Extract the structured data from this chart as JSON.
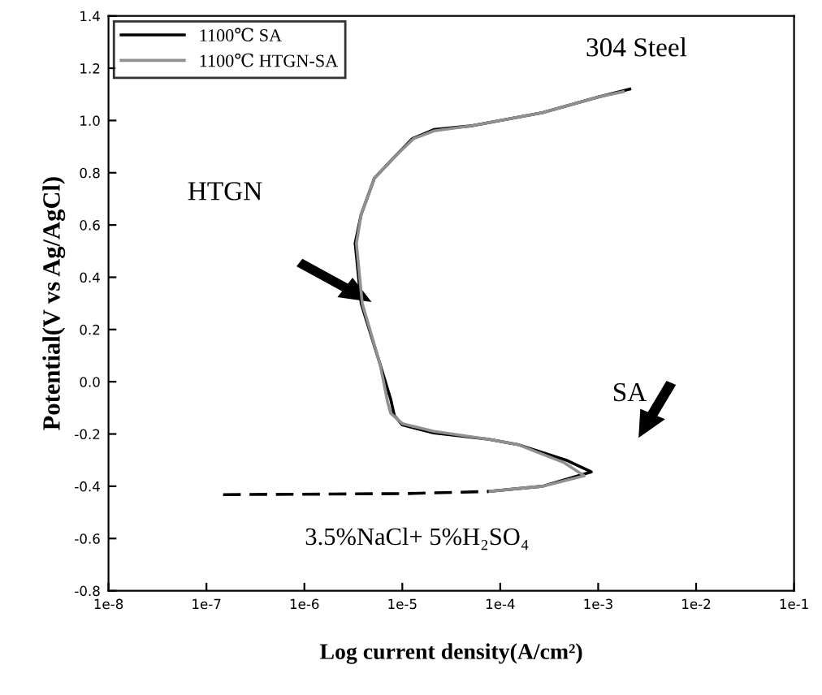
{
  "chart_data": {
    "type": "line",
    "xlabel": "Log current density(A/cm²)",
    "ylabel": "Potential(V vs Ag/AgCl)",
    "log": "x",
    "xlim": [
      1e-08,
      0.1
    ],
    "ylim": [
      -0.8,
      1.4
    ],
    "xticks": [
      {
        "value": 1e-08,
        "label": "1e-8"
      },
      {
        "value": 1e-07,
        "label": "1e-7"
      },
      {
        "value": 1e-06,
        "label": "1e-6"
      },
      {
        "value": 1e-05,
        "label": "1e-5"
      },
      {
        "value": 0.0001,
        "label": "1e-4"
      },
      {
        "value": 0.001,
        "label": "1e-3"
      },
      {
        "value": 0.01,
        "label": "1e-2"
      },
      {
        "value": 0.1,
        "label": "1e-1"
      }
    ],
    "yticks": [
      -0.8,
      -0.6,
      -0.4,
      -0.2,
      {
        "value": 0.0,
        "label": "0.0"
      },
      0.2,
      0.4,
      0.6,
      0.8,
      {
        "value": 1.0,
        "label": "1.0"
      },
      1.2,
      1.4
    ],
    "grid": false,
    "legend": "top left",
    "marker": "none",
    "series": [
      {
        "name": "1100℃ SA",
        "color": "#000000",
        "line_style": "solid",
        "x": [
          7.6e-05,
          0.00027,
          0.00085,
          0.00047,
          0.00015,
          7.6e-05,
          2.1e-05,
          1e-05,
          8.3e-06,
          7.6e-06,
          5.9e-06,
          3.8e-06,
          3.3e-06,
          3.8e-06,
          5.2e-06,
          8.3e-06,
          1.26e-05,
          2.1e-05,
          5.2e-05,
          0.00027,
          0.001,
          0.0021
        ],
        "values": [
          -0.42,
          -0.4,
          -0.345,
          -0.3,
          -0.24,
          -0.22,
          -0.196,
          -0.165,
          -0.13,
          -0.066,
          0.07,
          0.3,
          0.53,
          0.64,
          0.78,
          0.86,
          0.93,
          0.965,
          0.98,
          1.03,
          1.09,
          1.12
        ]
      },
      {
        "name": "1100℃ HTGN-SA",
        "color": "#909090",
        "line_style": "solid",
        "x": [
          7.6e-05,
          0.00027,
          0.00072,
          0.00045,
          0.00015,
          7.6e-05,
          2.1e-05,
          1e-05,
          7.6e-06,
          7.1e-06,
          5.9e-06,
          3.9e-06,
          3.4e-06,
          3.8e-06,
          5.2e-06,
          8.3e-06,
          1.3e-05,
          2.1e-05,
          5.2e-05,
          0.00027,
          0.001,
          0.0018
        ],
        "values": [
          -0.42,
          -0.4,
          -0.36,
          -0.31,
          -0.24,
          -0.22,
          -0.19,
          -0.16,
          -0.12,
          -0.08,
          0.07,
          0.3,
          0.53,
          0.64,
          0.78,
          0.86,
          0.93,
          0.96,
          0.98,
          1.03,
          1.09,
          1.11
        ]
      },
      {
        "color": "#000000",
        "line_style": "dashed",
        "x": [
          1.48e-07,
          1.66e-06,
          1.12e-05,
          7.6e-05
        ],
        "values": [
          -0.432,
          -0.43,
          -0.428,
          -0.42
        ]
      }
    ],
    "annotations": [
      "304 Steel",
      "3.5%NaCl+ 5%H₂SO₄",
      "HTGN",
      "SA"
    ]
  }
}
